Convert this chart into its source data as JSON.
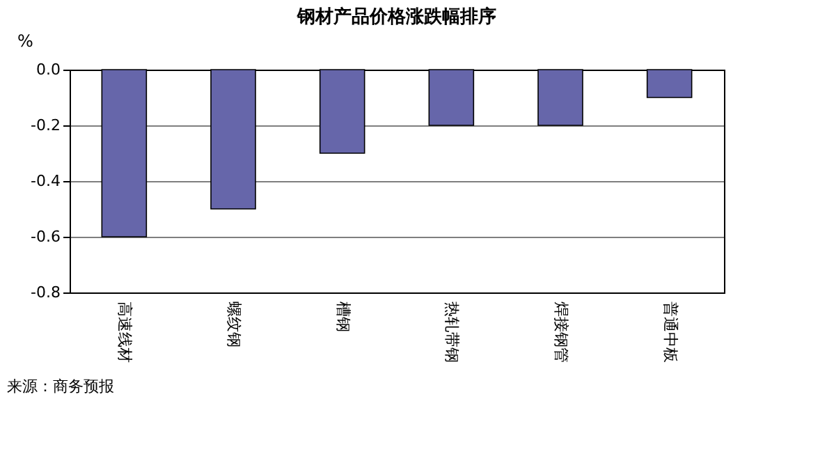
{
  "chart_data": {
    "type": "bar",
    "title": "钢材产品价格涨跌幅排序",
    "ylabel": "%",
    "categories": [
      "高速线材",
      "螺纹钢",
      "槽钢",
      "热轧带钢",
      "焊接钢管",
      "普通中板"
    ],
    "values": [
      -0.6,
      -0.5,
      -0.3,
      -0.2,
      -0.2,
      -0.1
    ],
    "color": "#6666aa",
    "ylim": [
      -0.8,
      0
    ],
    "yticks": [
      {
        "value": 0,
        "label": "0.0"
      },
      -0.2,
      -0.4,
      -0.6,
      -0.8
    ],
    "grid": "y",
    "annotations": [
      "来源：商务预报"
    ]
  }
}
